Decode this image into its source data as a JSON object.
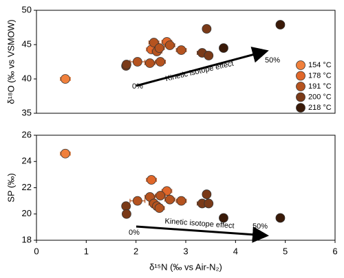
{
  "chart_data": [
    {
      "type": "scatter",
      "ylabel": "δ¹⁸O (‰ vs VSMOW)",
      "xlim": [
        0,
        6
      ],
      "ylim": [
        35,
        50
      ],
      "yticks": [
        35,
        40,
        45,
        50
      ],
      "annotations": [
        "Kinetic isotope effect",
        "0%",
        "50%"
      ],
      "legend": "right",
      "series": [
        {
          "name": "154 °C",
          "color": "#f0803c",
          "x": [
            0.58
          ],
          "values": [
            40.0
          ],
          "xerr": [
            0.1
          ]
        },
        {
          "name": "178 °C",
          "color": "#e0672a",
          "x": [
            2.31,
            2.62
          ],
          "values": [
            44.3,
            45.4
          ],
          "xerr": [
            0.1,
            0.1
          ]
        },
        {
          "name": "191 °C",
          "color": "#b5531f",
          "x": [
            2.03,
            2.28,
            2.36,
            2.42,
            2.47,
            2.49,
            2.68,
            2.91
          ],
          "values": [
            42.5,
            42.3,
            45.3,
            44.0,
            44.5,
            42.5,
            44.9,
            44.2
          ],
          "xerr": [
            0.15,
            0.1,
            0.1,
            0.1,
            0.1,
            0.1,
            0.1,
            0.1
          ]
        },
        {
          "name": "200 °C",
          "color": "#7a3a18",
          "x": [
            1.8,
            1.81,
            3.33,
            3.46,
            3.42
          ],
          "values": [
            41.9,
            42.1,
            43.8,
            43.4,
            47.3
          ],
          "xerr": [
            0.05,
            0.05,
            0.1,
            0.05,
            0.05
          ]
        },
        {
          "name": "218 °C",
          "color": "#3a1a08",
          "x": [
            3.76,
            4.9
          ],
          "values": [
            44.5,
            47.9
          ],
          "xerr": [
            0.03,
            0.08
          ]
        }
      ]
    },
    {
      "type": "scatter",
      "ylabel": "SP (‰)",
      "xlabel": "δ¹⁵N (‰ vs Air-N₂)",
      "xlim": [
        0,
        6
      ],
      "xticks": [
        0,
        1,
        2,
        3,
        4,
        5,
        6
      ],
      "ylim": [
        18,
        26
      ],
      "yticks": [
        18,
        20,
        22,
        24,
        26
      ],
      "annotations": [
        "Kinetic isotope effect",
        "0%",
        "50%"
      ],
      "series": [
        {
          "color": "#f0803c",
          "x": [
            0.58
          ],
          "values": [
            24.6
          ],
          "xerr": [
            0.1
          ]
        },
        {
          "color": "#e0672a",
          "x": [
            2.31,
            2.62
          ],
          "values": [
            22.6,
            21.75
          ],
          "xerr": [
            0.1,
            0.1
          ]
        },
        {
          "color": "#b5531f",
          "x": [
            2.03,
            2.28,
            2.36,
            2.42,
            2.47,
            2.49,
            2.68,
            2.91
          ],
          "values": [
            21.0,
            21.3,
            20.8,
            20.6,
            20.45,
            21.4,
            21.1,
            21.0
          ],
          "xerr": [
            0.15,
            0.1,
            0.1,
            0.1,
            0.1,
            0.1,
            0.1,
            0.1
          ]
        },
        {
          "color": "#7a3a18",
          "x": [
            1.8,
            1.81,
            3.33,
            3.46,
            3.42
          ],
          "values": [
            20.6,
            20.0,
            20.8,
            20.8,
            21.5
          ],
          "xerr": [
            0.05,
            0.05,
            0.1,
            0.05,
            0.05
          ]
        },
        {
          "color": "#3a1a08",
          "x": [
            3.76,
            4.9
          ],
          "values": [
            19.7,
            19.7
          ],
          "xerr": [
            0.03,
            0.08
          ]
        }
      ]
    }
  ]
}
